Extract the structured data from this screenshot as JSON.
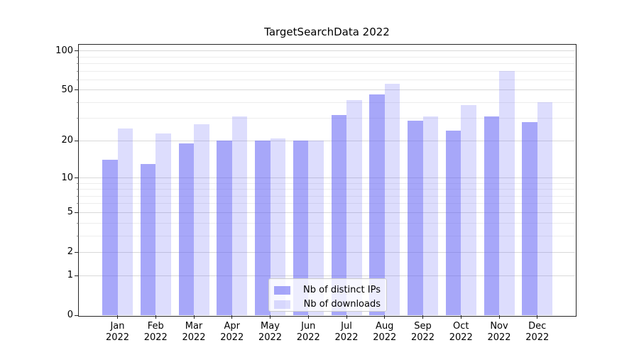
{
  "chart_data": {
    "type": "bar",
    "title": "TargetSearchData 2022",
    "categories": [
      "Jan 2022",
      "Feb 2022",
      "Mar 2022",
      "Apr 2022",
      "May 2022",
      "Jun 2022",
      "Jul 2022",
      "Aug 2022",
      "Sep 2022",
      "Oct 2022",
      "Nov 2022",
      "Dec 2022"
    ],
    "series": [
      {
        "name": "Nb of distinct IPs",
        "color": "rgba(98,98,245,0.56)",
        "color_on_white": "#a7a7f9",
        "values": [
          14,
          13,
          19,
          20,
          20,
          20,
          32,
          46,
          29,
          24,
          31,
          28
        ]
      },
      {
        "name": "Nb of downloads",
        "color": "rgba(98,98,245,0.22)",
        "color_on_white": "#dcdcfd",
        "values": [
          25,
          23,
          27,
          31,
          21,
          20,
          42,
          56,
          31,
          38,
          70,
          40
        ]
      }
    ],
    "xlabel": "",
    "ylabel": "",
    "yscale": "log10(1+y)",
    "ylim": [
      0,
      111
    ],
    "yticks": [
      0,
      1,
      2,
      5,
      10,
      20,
      50,
      100
    ],
    "yticks_minor": [
      3,
      4,
      6,
      7,
      8,
      9,
      30,
      40,
      60,
      70,
      80,
      90
    ],
    "grid": true,
    "legend": {
      "position": "lower center",
      "entries": [
        "Nb of distinct IPs",
        "Nb of downloads"
      ]
    }
  }
}
